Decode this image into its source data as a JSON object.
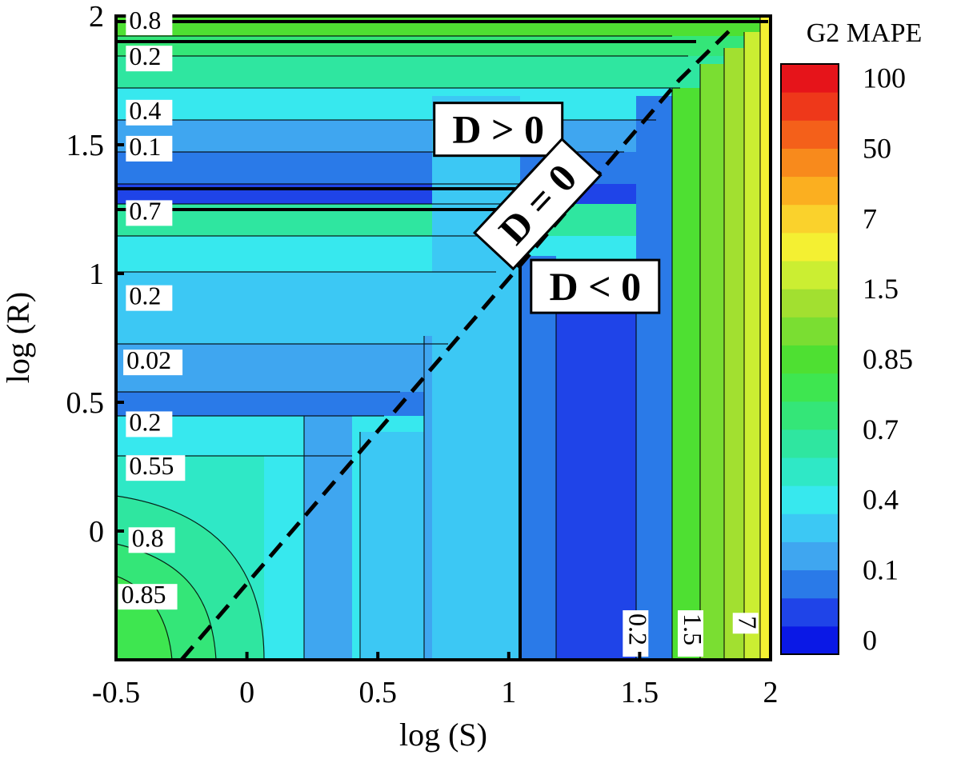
{
  "chart_data": {
    "type": "heatmap",
    "xlabel": "log (S)",
    "ylabel": "log (R)",
    "xlim": [
      -0.5,
      2
    ],
    "ylim": [
      -0.5,
      2
    ],
    "xticks": [
      "-0.5",
      "0",
      "0.5",
      "1",
      "1.5",
      "2"
    ],
    "xtick_values": [
      -0.5,
      0,
      0.5,
      1,
      1.5,
      2
    ],
    "yticks": [
      "0",
      "0.5",
      "1",
      "1.5",
      "2"
    ],
    "ytick_values": [
      0,
      0.5,
      1,
      1.5,
      2
    ],
    "colorbar": {
      "title": "G2 MAPE",
      "tick_labels": [
        "0",
        "0.1",
        "0.4",
        "0.7",
        "0.85",
        "1.5",
        "7",
        "50",
        "100"
      ],
      "colors": [
        "#0a18e6",
        "#1f44e8",
        "#2a7ae8",
        "#3fa6f0",
        "#3cc8f4",
        "#37e8ee",
        "#2fe8c6",
        "#2fe6a0",
        "#34e678",
        "#3ee650",
        "#4ee032",
        "#7ade32",
        "#a2e030",
        "#cbee32",
        "#f4f032",
        "#fad22c",
        "#fbaf20",
        "#f88a1c",
        "#f4601a",
        "#ee381a",
        "#e6141a"
      ]
    },
    "contour_labels": [
      {
        "text": "0.8",
        "x": -0.45,
        "y": 1.95
      },
      {
        "text": "0.2",
        "x": -0.45,
        "y": 1.81
      },
      {
        "text": "0.4",
        "x": -0.45,
        "y": 1.6
      },
      {
        "text": "0.1",
        "x": -0.45,
        "y": 1.46
      },
      {
        "text": "0.7",
        "x": -0.45,
        "y": 1.21
      },
      {
        "text": "0.2",
        "x": -0.45,
        "y": 0.88
      },
      {
        "text": "0.02",
        "x": -0.46,
        "y": 0.63
      },
      {
        "text": "0.2",
        "x": -0.45,
        "y": 0.39
      },
      {
        "text": "0.55",
        "x": -0.45,
        "y": 0.22
      },
      {
        "text": "0.8",
        "x": -0.44,
        "y": -0.06
      },
      {
        "text": "0.85",
        "x": -0.48,
        "y": -0.28
      },
      {
        "text": "0.2",
        "x": 1.46,
        "y": -0.32
      },
      {
        "text": "1.5",
        "x": 1.67,
        "y": -0.32
      },
      {
        "text": "7",
        "x": 1.88,
        "y": -0.33
      }
    ],
    "region_labels": [
      {
        "text": "D > 0",
        "x": 0.96,
        "y": 1.56
      },
      {
        "text": "D = 0",
        "x": 1.11,
        "y": 1.27
      },
      {
        "text": "D < 0",
        "x": 1.33,
        "y": 0.95
      }
    ],
    "boundary_line": {
      "name": "D = 0",
      "style": "dashed",
      "points": [
        [
          -0.25,
          -0.5
        ],
        [
          1.65,
          1.75
        ],
        [
          1.85,
          1.95
        ]
      ]
    }
  }
}
